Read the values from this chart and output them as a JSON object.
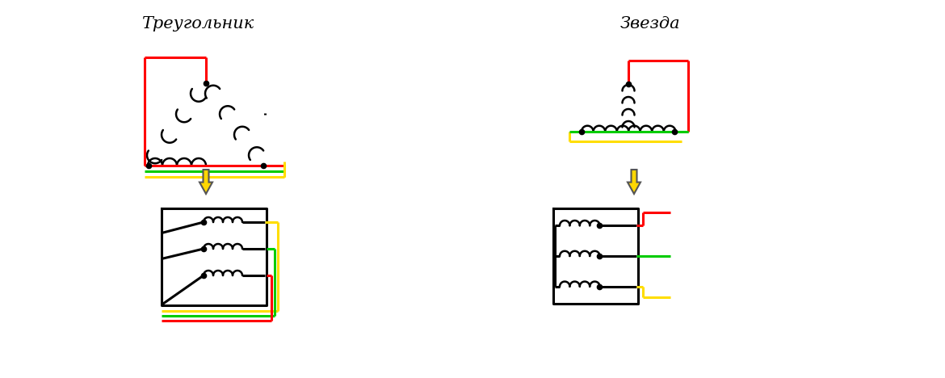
{
  "title_triangle": "Треугольник",
  "title_star": "Звезда",
  "bg_color": "#ffffff",
  "color_red": "#ff0000",
  "color_green": "#00cc00",
  "color_yellow": "#ffdd00",
  "color_black": "#000000",
  "figsize": [
    11.7,
    4.68
  ],
  "dpi": 100
}
